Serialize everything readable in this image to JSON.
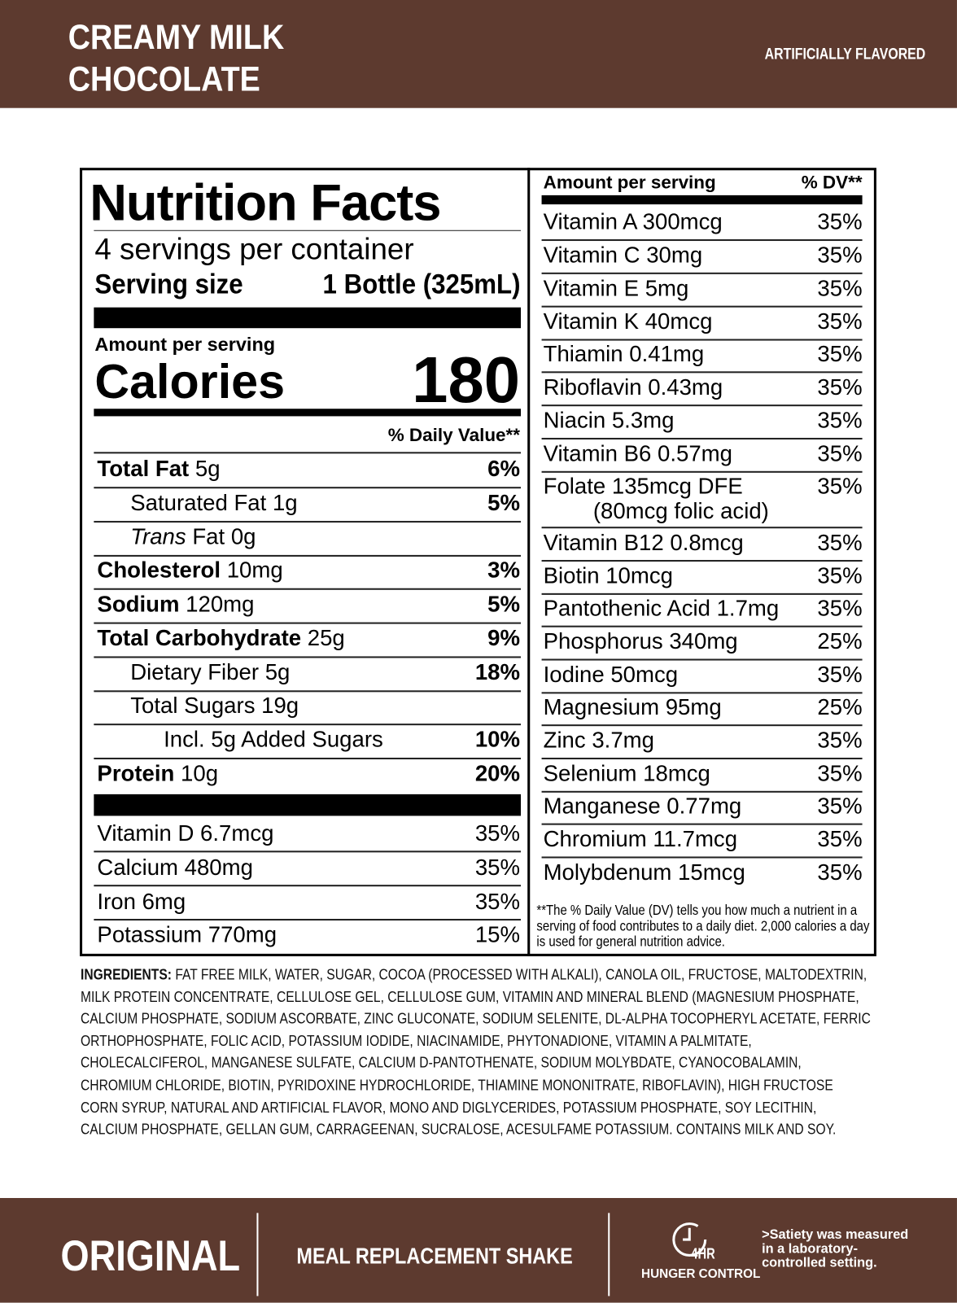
{
  "header": {
    "title_line1": "CREAMY MILK",
    "title_line2": "CHOCOLATE",
    "flavor": "ARTIFICIALLY FLAVORED"
  },
  "facts": {
    "title": "Nutrition Facts",
    "servings": "4 servings per container",
    "serving_size_label": "Serving size",
    "serving_size": "1 Bottle (325mL)",
    "amount_label": "Amount per serving",
    "calories_label": "Calories",
    "calories": 180,
    "dv_header": "% Daily Value**",
    "nutrients": [
      {
        "name": "Total Fat",
        "amount": "5g",
        "dv": "6%"
      },
      {
        "name": "Saturated Fat",
        "amount": "1g",
        "dv": "5%"
      },
      {
        "name_italic": "Trans",
        "name": "Fat",
        "amount": "0g"
      },
      {
        "name": "Cholesterol",
        "amount": "10mg",
        "dv": "3%"
      },
      {
        "name": "Sodium",
        "amount": "120mg",
        "dv": "5%"
      },
      {
        "name": "Total Carbohydrate",
        "amount": "25g",
        "dv": "9%"
      },
      {
        "name": "Dietary Fiber",
        "amount": "5g",
        "dv": "18%"
      },
      {
        "name": "Total Sugars",
        "amount": "19g"
      },
      {
        "name": "Incl. 5g Added Sugars",
        "dv": "10%"
      },
      {
        "name": "Protein",
        "amount": "10g",
        "dv": "20%"
      }
    ],
    "minerals": [
      {
        "name": "Vitamin D 6.7mcg",
        "dv": "35%"
      },
      {
        "name": "Calcium 480mg",
        "dv": "35%"
      },
      {
        "name": "Iron 6mg",
        "dv": "35%"
      },
      {
        "name": "Potassium 770mg",
        "dv": "15%"
      }
    ]
  },
  "vitamins": {
    "amount_label": "Amount per serving",
    "dv_header": "% DV**",
    "rows": [
      {
        "name": "Vitamin A 300mcg",
        "dv": "35%"
      },
      {
        "name": "Vitamin C 30mg",
        "dv": "35%"
      },
      {
        "name": "Vitamin E 5mg",
        "dv": "35%"
      },
      {
        "name": "Vitamin K 40mcg",
        "dv": "35%"
      },
      {
        "name": "Thiamin 0.41mg",
        "dv": "35%"
      },
      {
        "name": "Riboflavin 0.43mg",
        "dv": "35%"
      },
      {
        "name": "Niacin 5.3mg",
        "dv": "35%"
      },
      {
        "name": "Vitamin B6 0.57mg",
        "dv": "35%"
      },
      {
        "name": "Folate 135mcg DFE",
        "note": "(80mcg folic acid)",
        "dv": "35%"
      },
      {
        "name": "Vitamin B12 0.8mcg",
        "dv": "35%"
      },
      {
        "name": "Biotin 10mcg",
        "dv": "35%"
      },
      {
        "name": "Pantothenic Acid 1.7mg",
        "dv": "35%"
      },
      {
        "name": "Phosphorus 340mg",
        "dv": "25%"
      },
      {
        "name": "Iodine 50mcg",
        "dv": "35%"
      },
      {
        "name": "Magnesium 95mg",
        "dv": "25%"
      },
      {
        "name": "Zinc 3.7mg",
        "dv": "35%"
      },
      {
        "name": "Selenium 18mcg",
        "dv": "35%"
      },
      {
        "name": "Manganese 0.77mg",
        "dv": "35%"
      },
      {
        "name": "Chromium 11.7mcg",
        "dv": "35%"
      },
      {
        "name": "Molybdenum 15mcg",
        "dv": "35%"
      }
    ],
    "footnote": "**The % Daily Value (DV) tells you how much a nutrient in a serving of food contributes to a daily diet. 2,000 calories a day is used for general nutrition advice."
  },
  "ingredients": {
    "label": "INGREDIENTS:",
    "text": "FAT FREE MILK, WATER, SUGAR, COCOA (PROCESSED WITH ALKALI), CANOLA OIL, FRUCTOSE, MALTODEXTRIN, MILK PROTEIN CONCENTRATE, CELLULOSE GEL, CELLULOSE GUM, VITAMIN AND MINERAL BLEND (MAGNESIUM PHOSPHATE, CALCIUM PHOSPHATE, SODIUM ASCORBATE, ZINC GLUCONATE, SODIUM SELENITE, DL-ALPHA TOCOPHERYL ACETATE, FERRIC ORTHOPHOSPHATE, FOLIC ACID, POTASSIUM IODIDE, NIACINAMIDE, PHYTONADIONE, VITAMIN A PALMITATE, CHOLECALCIFEROL, MANGANESE SULFATE, CALCIUM D-PANTOTHENATE, SODIUM MOLYBDATE, CYANOCOBALAMIN, CHROMIUM CHLORIDE, BIOTIN, PYRIDOXINE HYDROCHLORIDE, THIAMINE MONONITRATE, RIBOFLAVIN), HIGH FRUCTOSE CORN SYRUP, NATURAL AND ARTIFICIAL FLAVOR, MONO AND DIGLYCERIDES, POTASSIUM PHOSPHATE, SOY LECITHIN, CALCIUM PHOSPHATE, GELLAN GUM, CARRAGEENAN, SUCRALOSE, ACESULFAME POTASSIUM. CONTAINS MILK AND SOY."
  },
  "footer": {
    "product": "ORIGINAL",
    "subtitle": "MEAL REPLACEMENT SHAKE",
    "hours": "4HR",
    "hunger": "HUNGER CONTROL",
    "satiety": ">Satiety was measured in a laboratory-controlled setting."
  }
}
